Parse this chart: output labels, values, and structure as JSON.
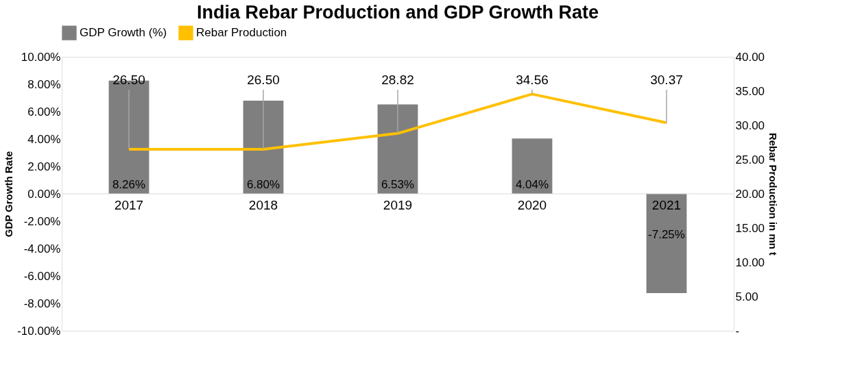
{
  "chart_data": {
    "type": "bar",
    "title": "India Rebar Production and GDP Growth Rate",
    "ylabel": "GDP Growth Rate",
    "y2label": "Rebar Production in mn t",
    "categories": [
      "2017",
      "2018",
      "2019",
      "2020",
      "2021"
    ],
    "series": [
      {
        "name": "GDP Growth (%)",
        "color": "#7f7f7f",
        "values": [
          8.26,
          6.8,
          6.53,
          4.04,
          -7.25
        ],
        "value_labels": [
          "8.26%",
          "6.80%",
          "6.53%",
          "4.04%",
          "-7.25%"
        ]
      },
      {
        "name": "Rebar Production",
        "type": "line",
        "axis": "y2",
        "color": "#ffc000",
        "values": [
          26.5,
          26.5,
          28.82,
          34.56,
          30.37
        ],
        "value_labels": [
          "26.50",
          "26.50",
          "28.82",
          "34.56",
          "30.37"
        ]
      }
    ],
    "ylim": [
      -10,
      10
    ],
    "yticks": [
      {
        "value": -10,
        "label": "-10.00%"
      },
      {
        "value": -8,
        "label": "-8.00%"
      },
      {
        "value": -6,
        "label": "-6.00%"
      },
      {
        "value": -4,
        "label": "-4.00%"
      },
      {
        "value": -2,
        "label": "-2.00%"
      },
      {
        "value": 0,
        "label": "0.00%"
      },
      {
        "value": 2,
        "label": "2.00%"
      },
      {
        "value": 4,
        "label": "4.00%"
      },
      {
        "value": 6,
        "label": "6.00%"
      },
      {
        "value": 8,
        "label": "8.00%"
      },
      {
        "value": 10,
        "label": "10.00%"
      }
    ],
    "y2lim": [
      0,
      40
    ],
    "y2ticks": [
      {
        "value": 0,
        "label": "-"
      },
      {
        "value": 5,
        "label": "5.00"
      },
      {
        "value": 10,
        "label": "10.00"
      },
      {
        "value": 15,
        "label": "15.00"
      },
      {
        "value": 20,
        "label": "20.00"
      },
      {
        "value": 25,
        "label": "25.00"
      },
      {
        "value": 30,
        "label": "30.00"
      },
      {
        "value": 35,
        "label": "35.00"
      },
      {
        "value": 40,
        "label": "40.00"
      }
    ],
    "grid": false,
    "legend": "top",
    "marker": "none",
    "line_style": "solid"
  }
}
